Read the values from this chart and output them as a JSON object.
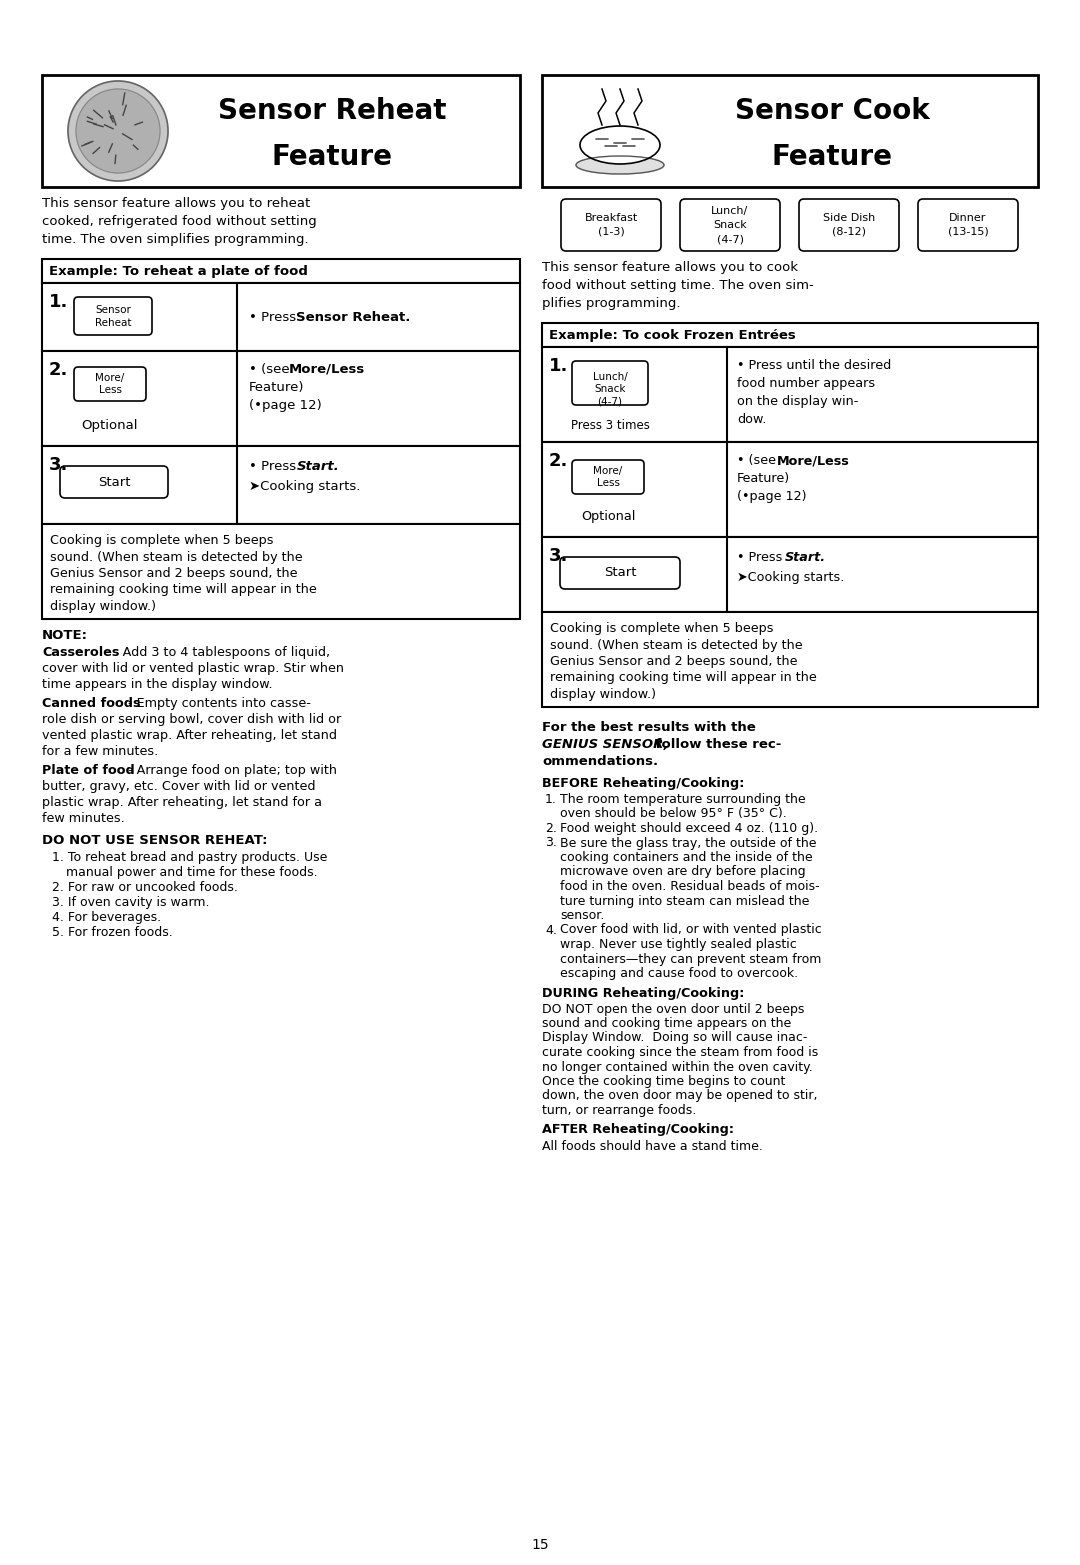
{
  "page_bg": "#ffffff",
  "page_number": "15",
  "left_title_line1": "Sensor Reheat",
  "left_title_line2": "Feature",
  "right_title_line1": "Sensor Cook",
  "right_title_line2": "Feature",
  "left_intro_lines": [
    "This sensor feature allows you to reheat",
    "cooked, refrigerated food without setting",
    "time. The oven simplifies programming."
  ],
  "right_intro_lines": [
    "This sensor feature allows you to cook",
    "food without setting time. The oven sim-",
    "plifies programming."
  ],
  "left_example_header": "Example: To reheat a plate of food",
  "right_example_header": "Example: To cook Frozen Entrées",
  "sensor_cook_categories": [
    "Breakfast\n(1-3)",
    "Lunch/\nSnack\n(4-7)",
    "Side Dish\n(8-12)",
    "Dinner\n(13-15)"
  ],
  "cooking_complete_lines": [
    "Cooking is complete when 5 beeps",
    "sound. (When steam is detected by the",
    "Genius Sensor and 2 beeps sound, the",
    "remaining cooking time will appear in the",
    "display window.)"
  ],
  "before_display": [
    [
      1,
      "The room temperature surrounding the"
    ],
    [
      0,
      "oven should be below 95° F (35° C)."
    ],
    [
      2,
      "Food weight should exceed 4 oz. (110 g)."
    ],
    [
      3,
      "Be sure the glass tray, the outside of the"
    ],
    [
      0,
      "cooking containers and the inside of the"
    ],
    [
      0,
      "microwave oven are dry before placing"
    ],
    [
      0,
      "food in the oven. Residual beads of mois-"
    ],
    [
      0,
      "ture turning into steam can mislead the"
    ],
    [
      0,
      "sensor."
    ],
    [
      4,
      "Cover food with lid, or with vented plastic"
    ],
    [
      0,
      "wrap. Never use tightly sealed plastic"
    ],
    [
      0,
      "containers—they can prevent steam from"
    ],
    [
      0,
      "escaping and cause food to overcook."
    ]
  ],
  "during_lines": [
    "DO NOT open the oven door until 2 beeps",
    "sound and cooking time appears on the",
    "Display Window.  Doing so will cause inac-",
    "curate cooking since the steam from food is",
    "no longer contained within the oven cavity.",
    "Once the cooking time begins to count",
    "down, the oven door may be opened to stir,",
    "turn, or rearrange foods."
  ],
  "after_text": "All foods should have a stand time.",
  "do_not_items_lines": [
    "To reheat bread and pastry products. Use",
    "   manual power and time for these foods.",
    "For raw or uncooked foods.",
    "If oven cavity is warm.",
    "For beverages.",
    "For frozen foods."
  ],
  "do_not_nums": [
    1,
    0,
    2,
    3,
    4,
    5
  ]
}
